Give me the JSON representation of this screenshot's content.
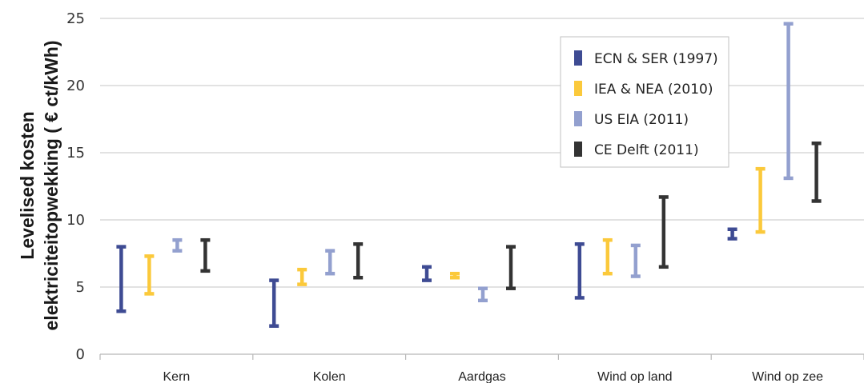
{
  "chart_data": {
    "type": "range",
    "ylabel_line1": "Levelised kosten",
    "ylabel_line2": "elektriciteitopwekking  ( € ct/kWh)",
    "xlabel": "",
    "ylim": [
      0,
      25
    ],
    "yticks": [
      "0",
      "5",
      "10",
      "15",
      "20",
      "25"
    ],
    "grid": true,
    "legend_position": "top-right",
    "categories": [
      "Kern",
      "Kolen",
      "Aardgas",
      "Wind op land",
      "Wind op zee"
    ],
    "series": [
      {
        "name": "ECN & SER (1997)",
        "color": "#3e4b93",
        "ranges": [
          [
            3.2,
            8.0
          ],
          [
            2.1,
            5.5
          ],
          [
            5.5,
            6.5
          ],
          [
            4.2,
            8.2
          ],
          [
            8.6,
            9.3
          ]
        ]
      },
      {
        "name": "IEA & NEA (2010)",
        "color": "#fbc93b",
        "ranges": [
          [
            4.5,
            7.3
          ],
          [
            5.2,
            6.3
          ],
          [
            5.7,
            6.0
          ],
          [
            6.0,
            8.5
          ],
          [
            9.1,
            13.8
          ]
        ]
      },
      {
        "name": "US EIA (2011)",
        "color": "#93a0cf",
        "ranges": [
          [
            7.7,
            8.5
          ],
          [
            6.0,
            7.7
          ],
          [
            4.0,
            4.9
          ],
          [
            5.8,
            8.1
          ],
          [
            13.1,
            24.6
          ]
        ]
      },
      {
        "name": "CE Delft (2011)",
        "color": "#333333",
        "ranges": [
          [
            6.2,
            8.5
          ],
          [
            5.7,
            8.2
          ],
          [
            4.9,
            8.0
          ],
          [
            6.5,
            11.7
          ],
          [
            11.4,
            15.7
          ]
        ]
      }
    ]
  }
}
